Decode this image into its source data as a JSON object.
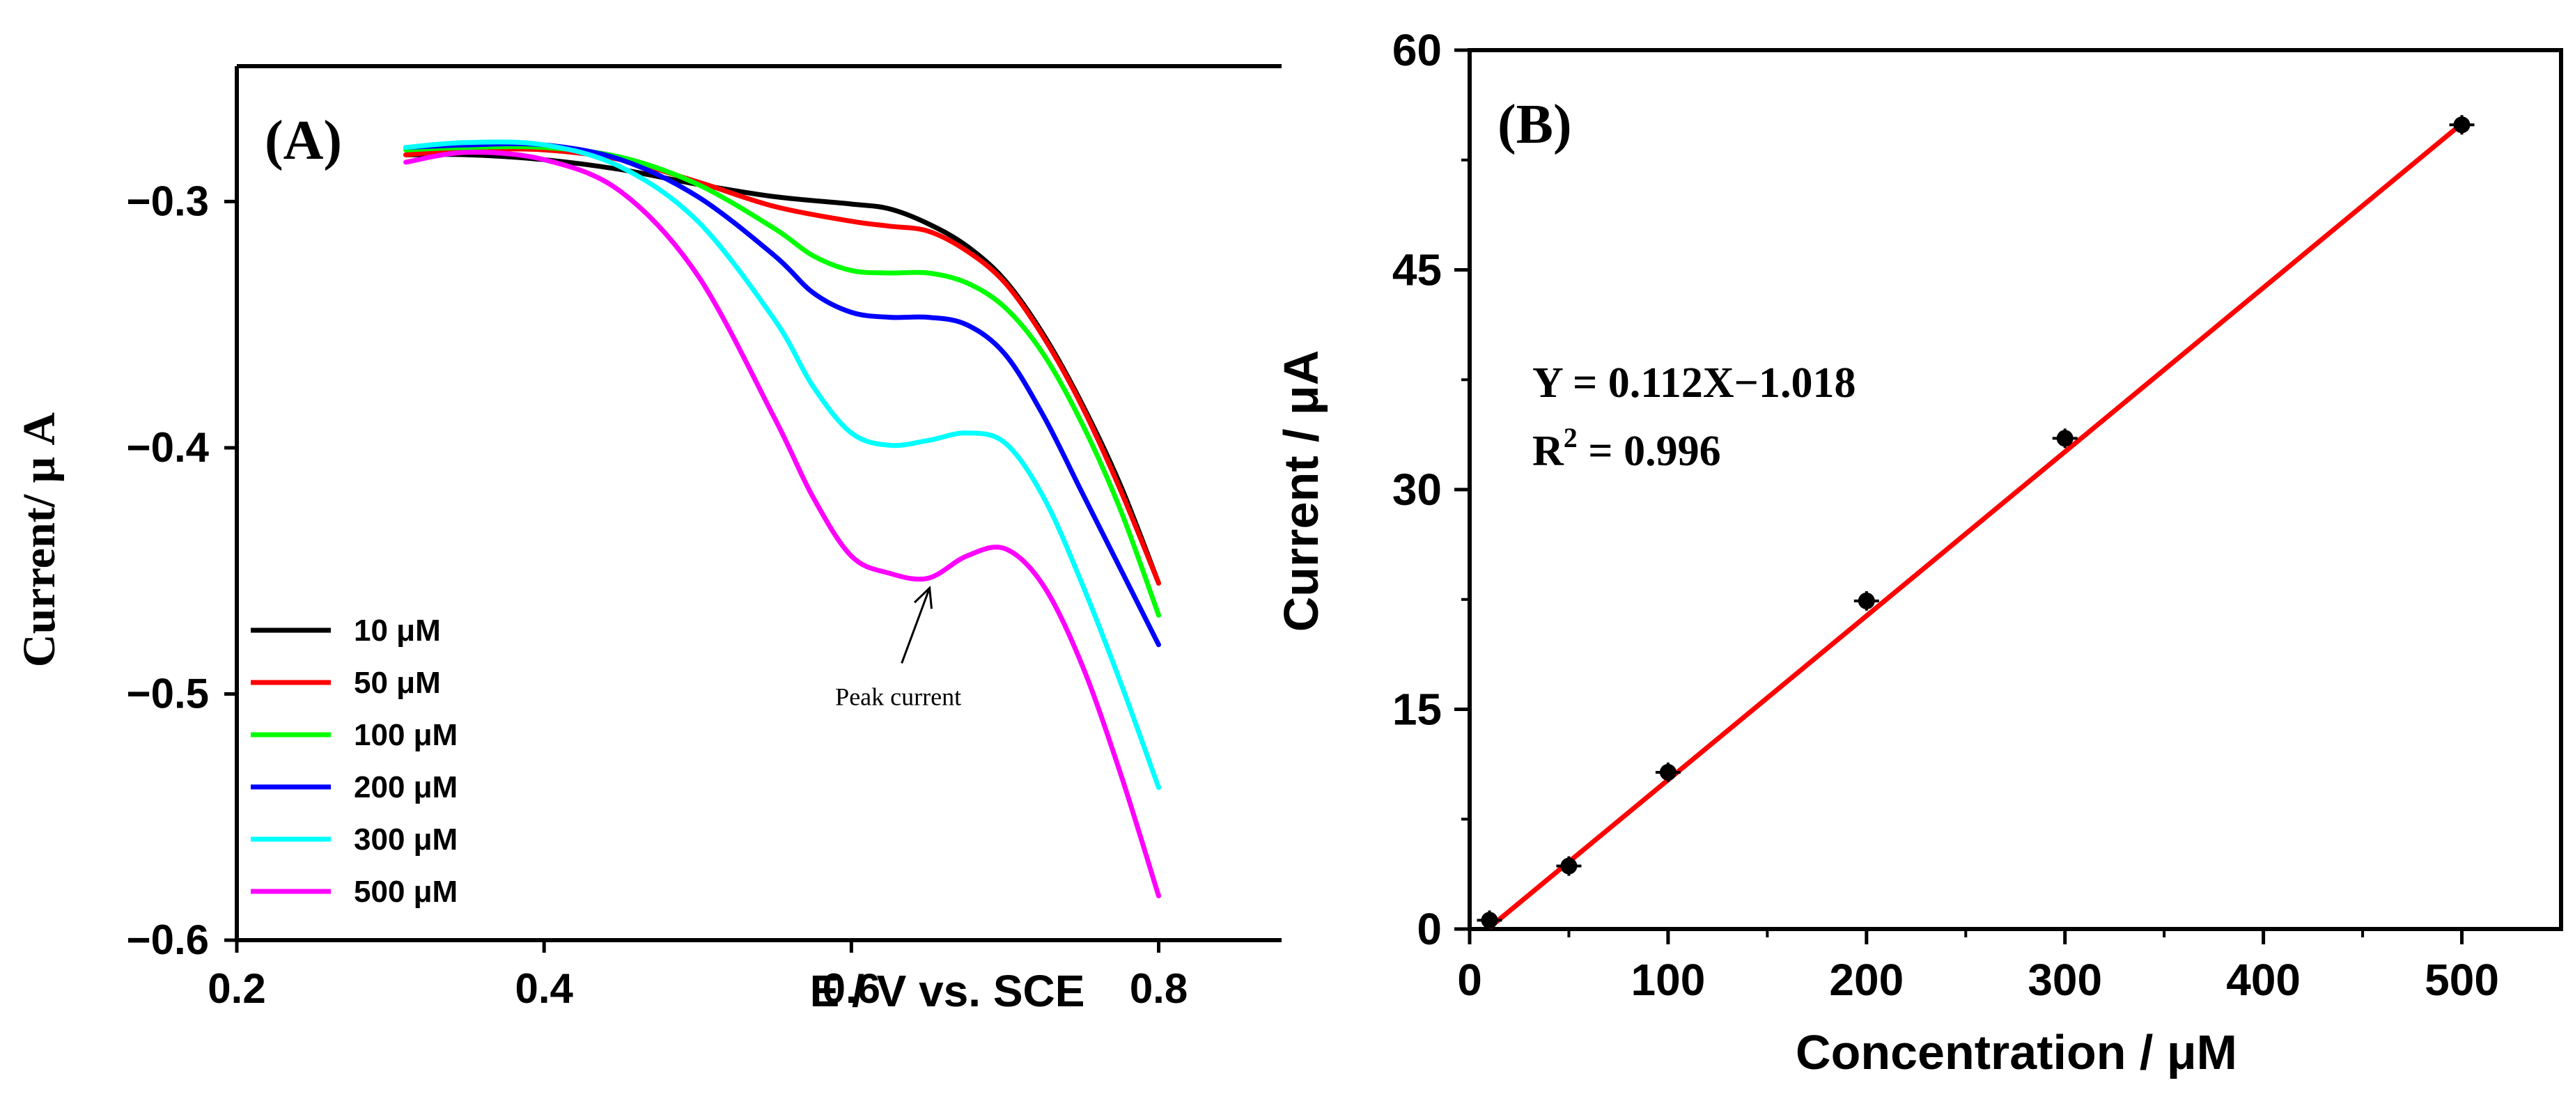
{
  "chart_data": [
    {
      "type": "line",
      "panel_label": "(A)",
      "xlabel": "E / V vs. SCE",
      "ylabel": "Current/ μ A",
      "xlim": [
        0.2,
        0.88
      ],
      "ylim": [
        -0.6,
        -0.245
      ],
      "xticks": [
        0.2,
        0.4,
        0.6,
        0.8
      ],
      "xtick_labels": [
        "0.2",
        "0.4",
        "0.6",
        "0.8"
      ],
      "yticks": [
        -0.3,
        -0.4,
        -0.5,
        -0.6
      ],
      "ytick_labels": [
        "−0.3",
        "−0.4",
        "−0.5",
        "−0.6"
      ],
      "legend_position": "bottom-left",
      "annotation": {
        "text": "Peak current",
        "x": 0.65,
        "y": -0.453
      },
      "series": [
        {
          "name": "10 μM",
          "color": "#000000",
          "x": [
            0.31,
            0.35,
            0.4,
            0.45,
            0.5,
            0.55,
            0.6,
            0.625,
            0.65,
            0.675,
            0.7,
            0.725,
            0.75,
            0.775,
            0.8
          ],
          "y": [
            -0.281,
            -0.281,
            -0.283,
            -0.287,
            -0.293,
            -0.298,
            -0.301,
            -0.303,
            -0.309,
            -0.318,
            -0.332,
            -0.354,
            -0.382,
            -0.415,
            -0.455
          ]
        },
        {
          "name": "50 μM",
          "color": "#ff0000",
          "x": [
            0.31,
            0.35,
            0.4,
            0.45,
            0.5,
            0.55,
            0.6,
            0.625,
            0.65,
            0.675,
            0.7,
            0.725,
            0.75,
            0.775,
            0.8
          ],
          "y": [
            -0.281,
            -0.279,
            -0.279,
            -0.283,
            -0.292,
            -0.302,
            -0.308,
            -0.31,
            -0.312,
            -0.32,
            -0.333,
            -0.355,
            -0.383,
            -0.417,
            -0.455
          ]
        },
        {
          "name": "100 μM",
          "color": "#00ff00",
          "x": [
            0.31,
            0.35,
            0.4,
            0.45,
            0.5,
            0.55,
            0.575,
            0.6,
            0.625,
            0.65,
            0.675,
            0.7,
            0.725,
            0.75,
            0.775,
            0.8
          ],
          "y": [
            -0.279,
            -0.278,
            -0.278,
            -0.282,
            -0.293,
            -0.311,
            -0.322,
            -0.328,
            -0.329,
            -0.329,
            -0.333,
            -0.343,
            -0.362,
            -0.39,
            -0.425,
            -0.468
          ]
        },
        {
          "name": "200 μM",
          "color": "#0000ff",
          "x": [
            0.31,
            0.35,
            0.4,
            0.45,
            0.5,
            0.55,
            0.575,
            0.6,
            0.625,
            0.65,
            0.675,
            0.7,
            0.725,
            0.75,
            0.775,
            0.8
          ],
          "y": [
            -0.278,
            -0.277,
            -0.277,
            -0.283,
            -0.298,
            -0.322,
            -0.337,
            -0.345,
            -0.347,
            -0.347,
            -0.35,
            -0.362,
            -0.387,
            -0.418,
            -0.449,
            -0.48
          ]
        },
        {
          "name": "300 μM",
          "color": "#00ffff",
          "x": [
            0.31,
            0.35,
            0.4,
            0.45,
            0.5,
            0.55,
            0.575,
            0.6,
            0.625,
            0.65,
            0.675,
            0.7,
            0.725,
            0.75,
            0.775,
            0.8
          ],
          "y": [
            -0.278,
            -0.276,
            -0.277,
            -0.286,
            -0.308,
            -0.348,
            -0.375,
            -0.394,
            -0.399,
            -0.397,
            -0.394,
            -0.398,
            -0.42,
            -0.455,
            -0.495,
            -0.538
          ]
        },
        {
          "name": "500 μM",
          "color": "#ff00ff",
          "x": [
            0.31,
            0.35,
            0.4,
            0.45,
            0.5,
            0.55,
            0.575,
            0.6,
            0.625,
            0.65,
            0.675,
            0.7,
            0.725,
            0.75,
            0.775,
            0.8
          ],
          "y": [
            -0.284,
            -0.28,
            -0.283,
            -0.296,
            -0.33,
            -0.388,
            -0.42,
            -0.444,
            -0.451,
            -0.453,
            -0.444,
            -0.441,
            -0.456,
            -0.488,
            -0.532,
            -0.582
          ]
        }
      ]
    },
    {
      "type": "scatter",
      "panel_label": "(B)",
      "xlabel": "Concentration / μM",
      "ylabel": "Current / μA",
      "xlim": [
        0,
        550
      ],
      "ylim": [
        0,
        60
      ],
      "xticks": [
        0,
        100,
        200,
        300,
        400,
        500
      ],
      "xtick_labels": [
        "0",
        "100",
        "200",
        "300",
        "400",
        "500"
      ],
      "yticks": [
        0,
        15,
        30,
        45,
        60
      ],
      "ytick_labels": [
        "0",
        "15",
        "30",
        "45",
        "60"
      ],
      "equation": "Y = 0.112X−1.018",
      "r_squared_prefix": "R",
      "r_squared_sup": "2",
      "r_squared_value": " = 0.996",
      "points": {
        "x": [
          10,
          50,
          100,
          200,
          300,
          500
        ],
        "y": [
          0.6,
          4.3,
          10.7,
          22.4,
          33.5,
          54.9
        ]
      },
      "fit": {
        "slope": 0.112,
        "intercept": -1.018,
        "x_range": [
          10,
          500
        ],
        "color": "#ff0000"
      }
    }
  ]
}
